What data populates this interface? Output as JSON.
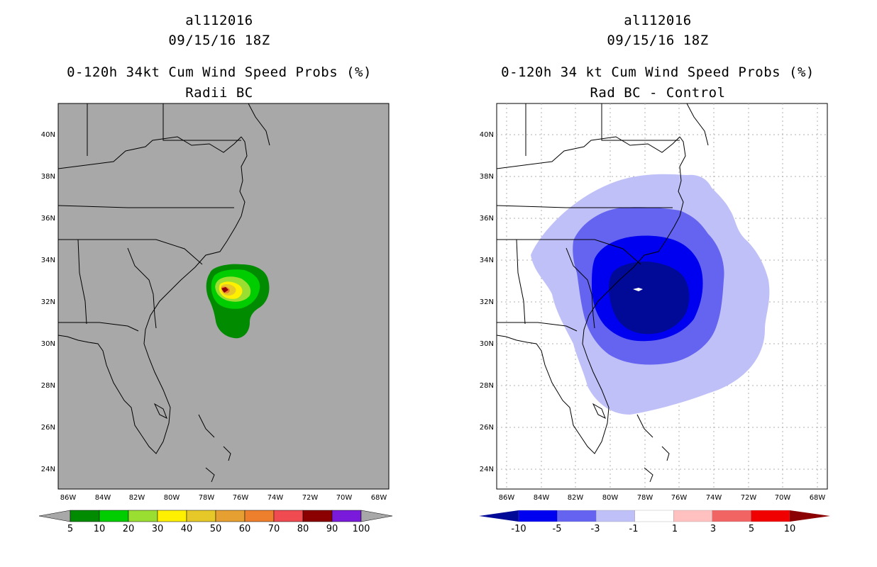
{
  "left": {
    "storm_id": "al112016",
    "datetime": "09/15/16 18Z",
    "product": "0-120h 34kt Cum Wind Speed Probs (%)",
    "subtitle": "Radii BC",
    "lat_labels": [
      "40N",
      "38N",
      "36N",
      "34N",
      "32N",
      "30N",
      "28N",
      "26N",
      "24N"
    ],
    "lon_labels": [
      "86W",
      "84W",
      "82W",
      "80W",
      "78W",
      "76W",
      "74W",
      "72W",
      "70W",
      "68W"
    ],
    "colorbar": {
      "labels": [
        "5",
        "10",
        "20",
        "30",
        "40",
        "50",
        "60",
        "70",
        "80",
        "90",
        "100"
      ],
      "colors": [
        "#008b00",
        "#00cd00",
        "#9ade32",
        "#fff000",
        "#e6c828",
        "#e6a032",
        "#ee7f2d",
        "#f04b50",
        "#8b0000",
        "#7a1bdc"
      ],
      "end_color": "#a8a8a8"
    },
    "map_background": "#a8a8a8"
  },
  "right": {
    "storm_id": "al112016",
    "datetime": "09/15/16 18Z",
    "product": "0-120h 34 kt Cum Wind Speed Probs (%)",
    "subtitle": "Rad BC - Control",
    "lat_labels": [
      "40N",
      "38N",
      "36N",
      "34N",
      "32N",
      "30N",
      "28N",
      "26N",
      "24N"
    ],
    "lon_labels": [
      "86W",
      "84W",
      "82W",
      "80W",
      "78W",
      "76W",
      "74W",
      "72W",
      "70W",
      "68W"
    ],
    "colorbar": {
      "labels": [
        "-10",
        "-5",
        "-3",
        "-1",
        "1",
        "3",
        "5",
        "10"
      ],
      "colors": [
        "#000a96",
        "#0000f0",
        "#6464f0",
        "#c0c0f8",
        "#ffffff",
        "#ffc0c0",
        "#f06464",
        "#f00000",
        "#8b0000"
      ]
    },
    "map_background": "#ffffff"
  }
}
